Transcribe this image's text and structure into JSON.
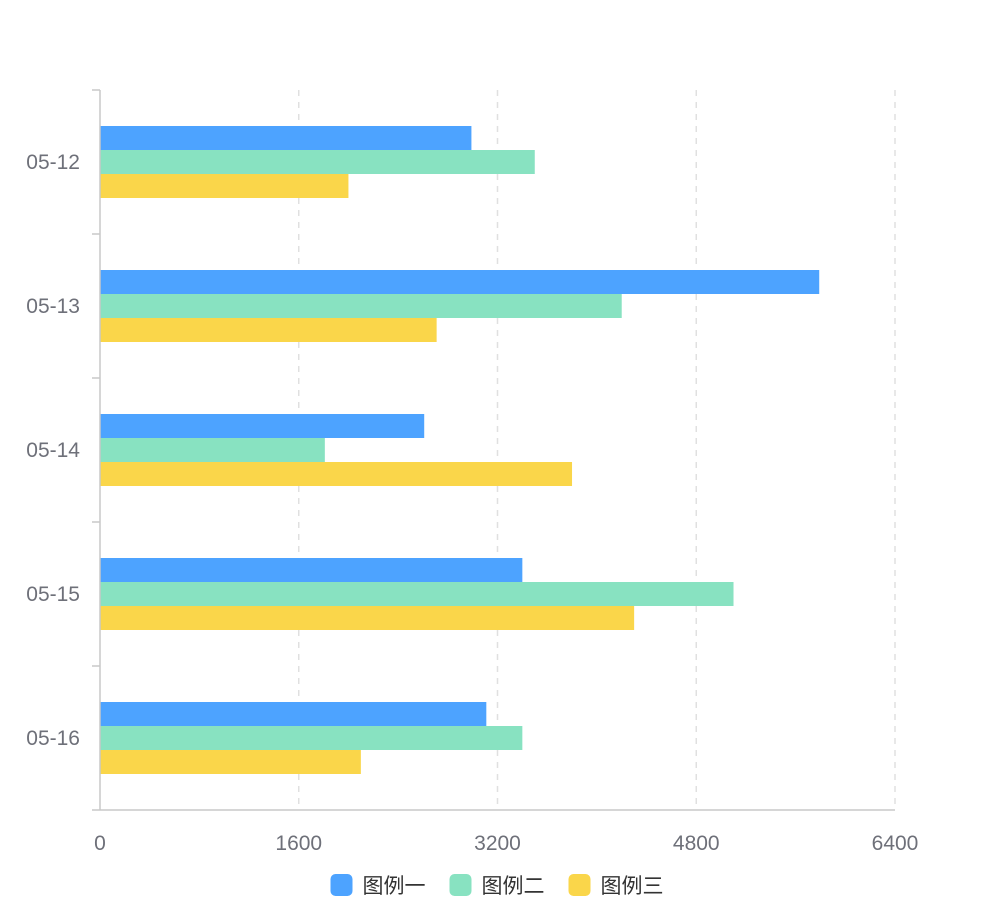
{
  "chart_data": {
    "type": "bar",
    "orientation": "horizontal",
    "title": "",
    "xlabel": "",
    "ylabel": "",
    "categories": [
      "05-12",
      "05-13",
      "05-14",
      "05-15",
      "05-16"
    ],
    "series": [
      {
        "name": "图例一",
        "color": "#4da3ff",
        "values": [
          2990,
          5790,
          2610,
          3400,
          3110
        ]
      },
      {
        "name": "图例二",
        "color": "#88e2c1",
        "values": [
          3500,
          4200,
          1810,
          5100,
          3400
        ]
      },
      {
        "name": "图例三",
        "color": "#fad64a",
        "values": [
          2000,
          2710,
          3800,
          4300,
          2100
        ]
      }
    ],
    "xlim": [
      0,
      6400
    ],
    "xticks": [
      "0",
      "1600",
      "3200",
      "4800",
      "6400"
    ],
    "grid": true,
    "grid_style": "dashed",
    "legend_position": "bottom-center"
  }
}
